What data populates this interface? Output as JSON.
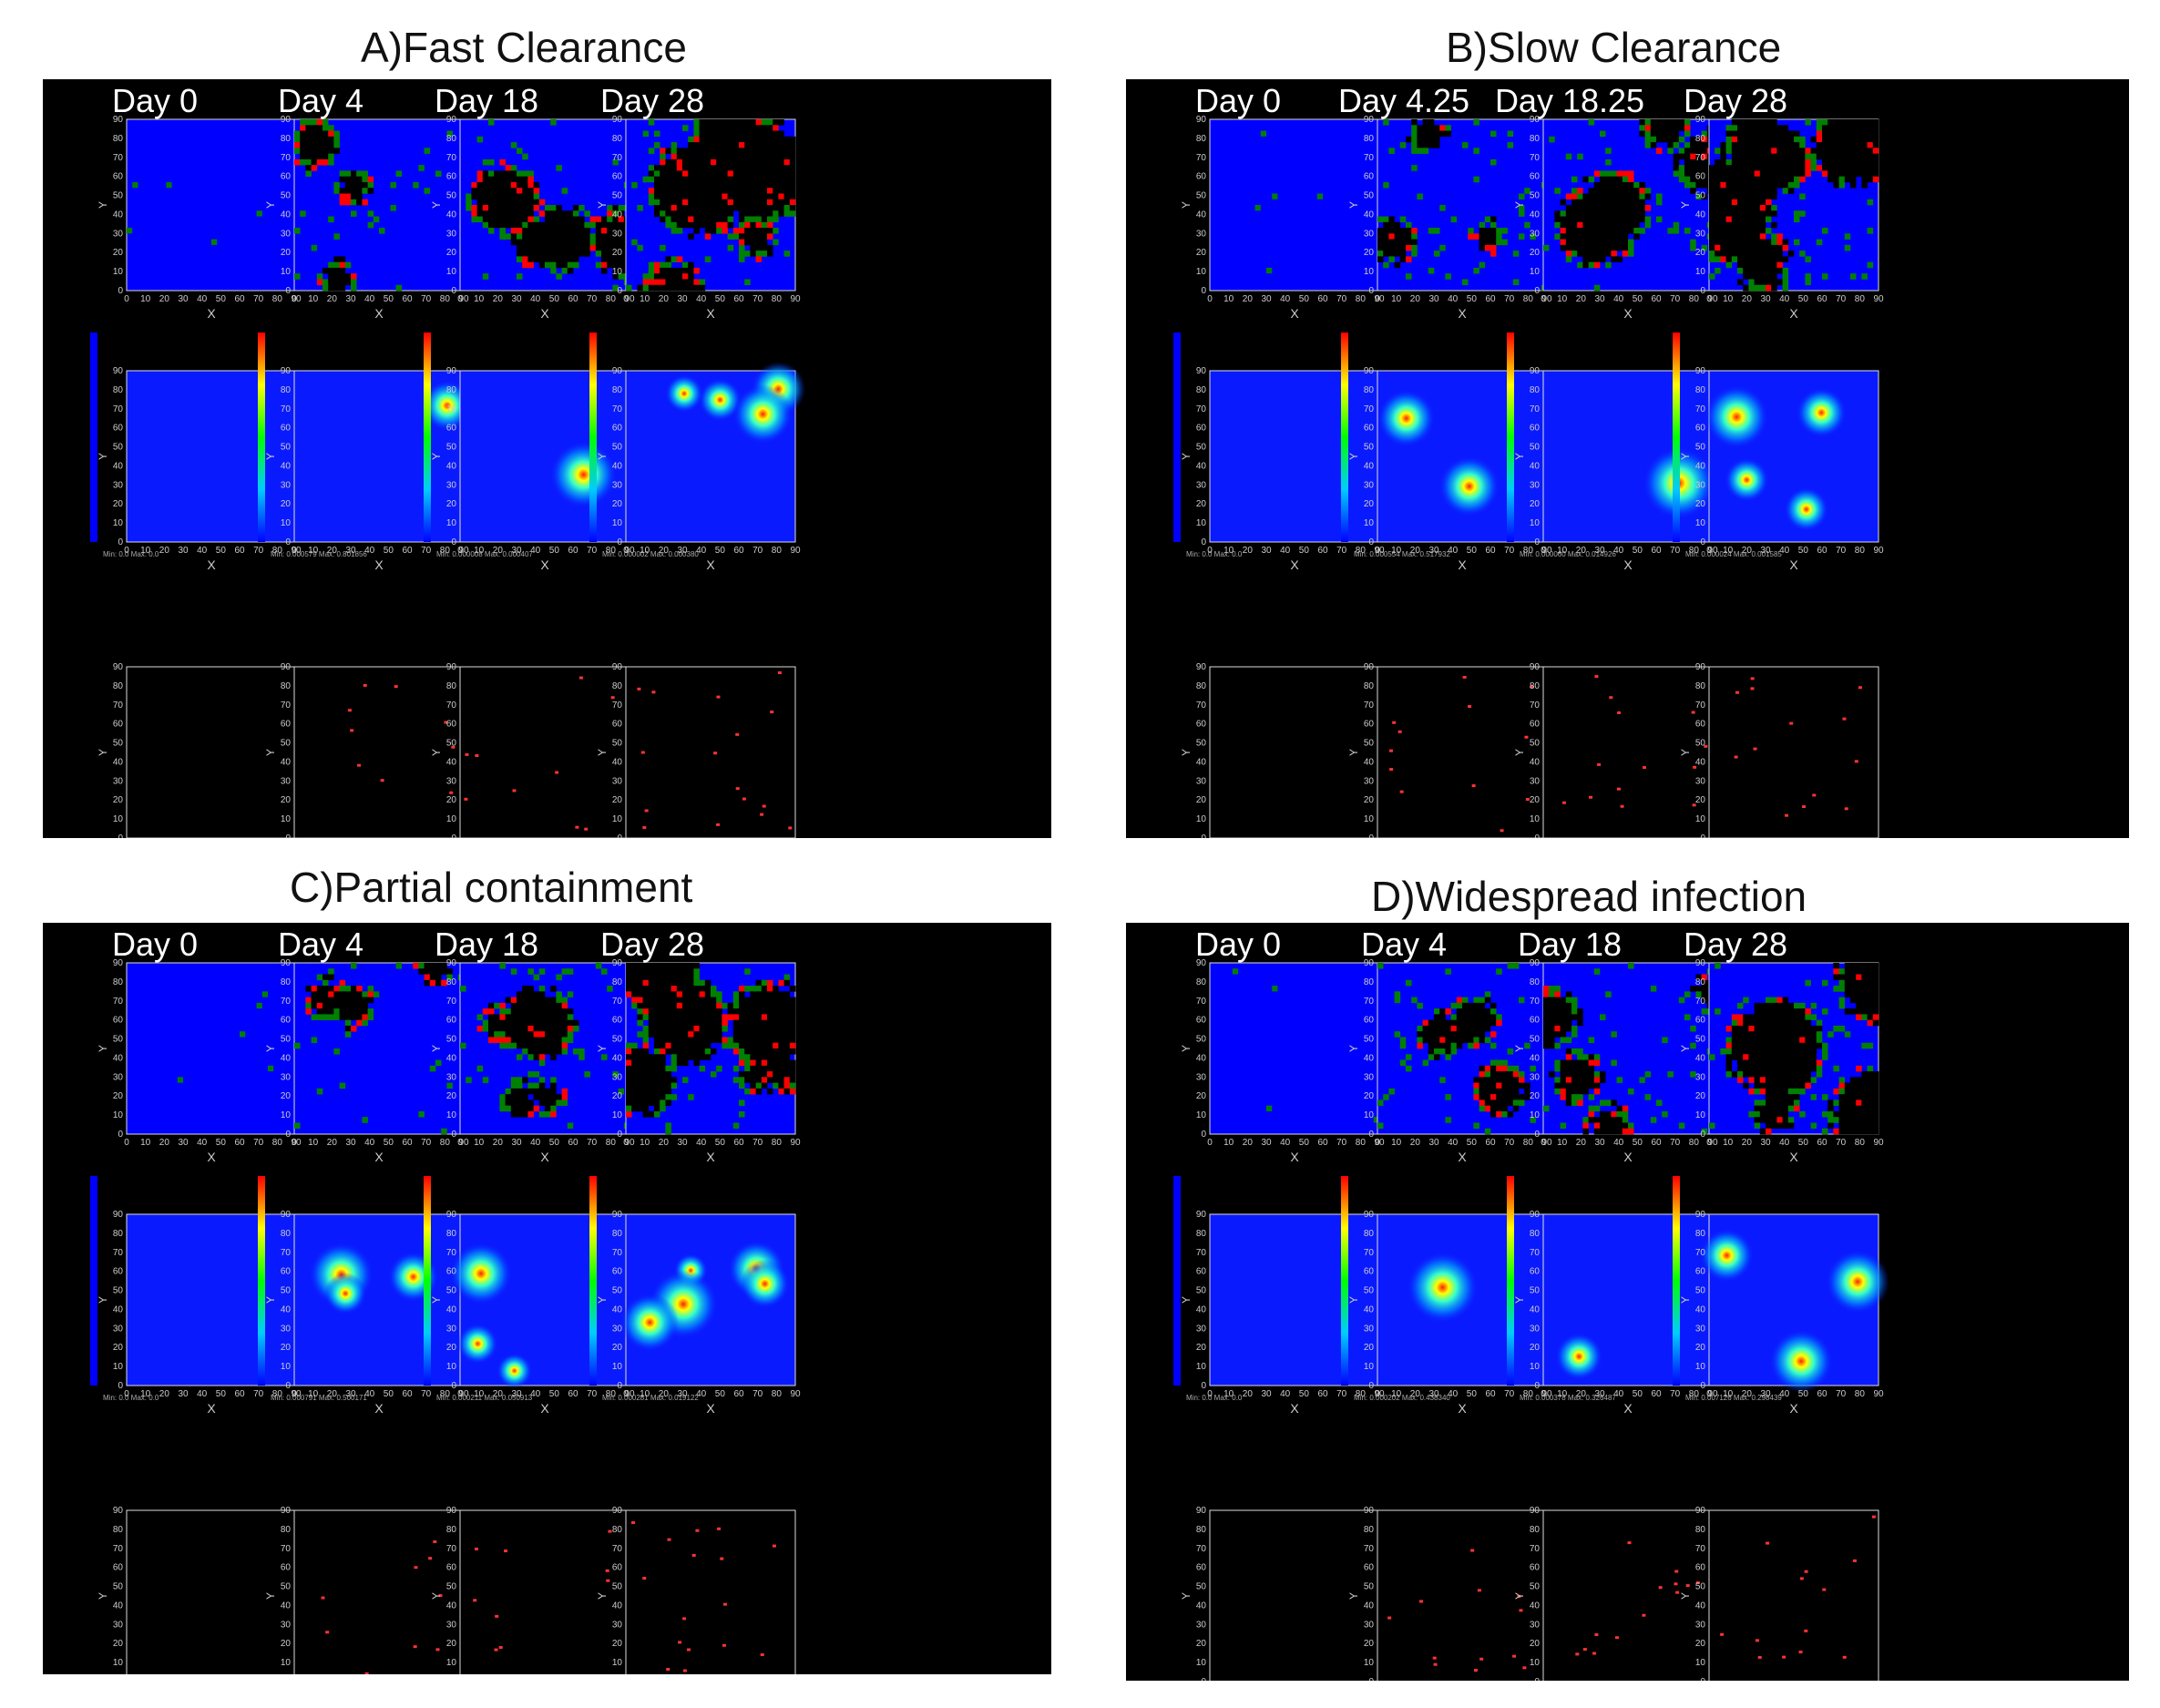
{
  "panels": [
    {
      "id": "A",
      "label": "A)",
      "title": "Fast Clearance",
      "days": [
        "Day 0",
        "Day 4",
        "Day 18",
        "Day 28"
      ],
      "minmax": [
        "Min: 0.0 Max: 0.0",
        "Min: 0.000579 Max: 0.801856",
        "Min: 0.000008 Max: 0.000407",
        "Min: 0.000002 Max: 0.000380"
      ]
    },
    {
      "id": "B",
      "label": "B)",
      "title": "Slow Clearance",
      "days": [
        "Day 0",
        "Day 4.25",
        "Day 18.25",
        "Day 28"
      ],
      "minmax": [
        "Min: 0.0 Max: 0.0",
        "Min: 0.000554 Max: 0.517932",
        "Min: 0.000060 Max: 0.014926",
        "Min: 0.000024 Max: 0.001585"
      ]
    },
    {
      "id": "C",
      "label": "C)",
      "title": "Partial containment",
      "days": [
        "Day 0",
        "Day 4",
        "Day 18",
        "Day 28"
      ],
      "minmax": [
        "Min: 0.0 Max: 0.0",
        "Min: 0.000791 Max: 0.500171",
        "Min: 0.000211 Max: 0.050913",
        "Min: 0.000281 Max: 0.019122"
      ]
    },
    {
      "id": "D",
      "label": "D)",
      "title": "Widespread  infection",
      "days": [
        "Day 0",
        "Day 4",
        "Day 18",
        "Day 28"
      ],
      "minmax": [
        "Min: 0.0 Max: 0.0",
        "Min: 0.000202 Max: 0.438340",
        "Min: 0.000378 Max: 0.326487",
        "Min: 0.007126 Max: 0.298439"
      ]
    }
  ],
  "axes": {
    "xlabel": "X",
    "ylabel": "Y",
    "ticks": [
      "0",
      "10",
      "20",
      "30",
      "40",
      "50",
      "60",
      "70",
      "80",
      "90"
    ]
  },
  "colors": {
    "healthy": "#0000ff",
    "infected": "#008000",
    "virus_producing": "#ff0000",
    "dead": "#000000",
    "immune_cell": "#ff3333"
  }
}
